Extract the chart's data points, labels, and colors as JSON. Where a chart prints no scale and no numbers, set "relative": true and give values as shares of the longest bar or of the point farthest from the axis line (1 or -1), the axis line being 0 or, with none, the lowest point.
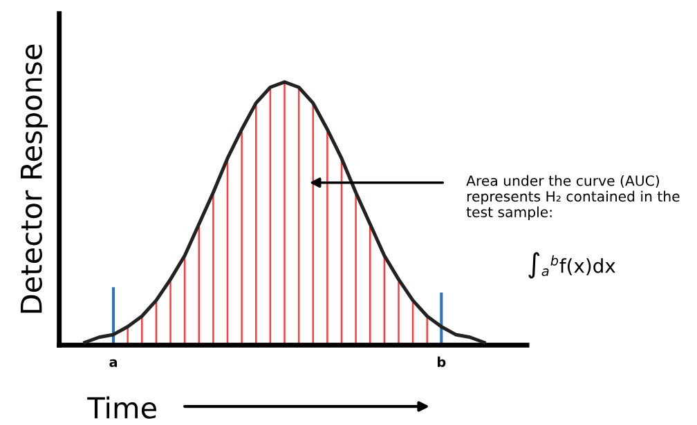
{
  "chart_data": {
    "type": "line",
    "relative": true,
    "xlabel": "Time",
    "ylabel": "Detector Response",
    "grid": false,
    "legend": false,
    "marker": "none",
    "categories": [
      null,
      null,
      "a",
      null,
      null,
      null,
      null,
      null,
      null,
      null,
      null,
      null,
      null,
      null,
      null,
      null,
      null,
      null,
      null,
      null,
      null,
      null,
      null,
      null,
      null,
      "b",
      null,
      null,
      null
    ],
    "series": [
      {
        "color": "#222222",
        "values": [
          0.01,
          0.03,
          0.04,
          0.07,
          0.11,
          0.17,
          0.25,
          0.34,
          0.46,
          0.58,
          0.71,
          0.82,
          0.92,
          0.98,
          1,
          0.98,
          0.92,
          0.82,
          0.71,
          0.58,
          0.46,
          0.34,
          0.25,
          0.17,
          0.11,
          0.07,
          0.04,
          0.03,
          0.01
        ]
      },
      {
        "type": "bar",
        "color": "#ff3b3b",
        "values": [
          null,
          null,
          null,
          0.07,
          0.11,
          0.17,
          0.25,
          0.34,
          0.46,
          0.58,
          0.71,
          0.82,
          0.92,
          0.98,
          1,
          0.98,
          0.92,
          0.82,
          0.71,
          0.58,
          0.46,
          0.34,
          0.25,
          0.17,
          0.11,
          null,
          null,
          null,
          null
        ]
      },
      {
        "type": "bar",
        "color": "#2e75b6",
        "values": [
          null,
          null,
          0.22,
          null,
          null,
          null,
          null,
          null,
          null,
          null,
          null,
          null,
          null,
          null,
          null,
          null,
          null,
          null,
          null,
          null,
          null,
          null,
          null,
          null,
          null,
          0.2,
          null,
          null,
          null
        ]
      }
    ],
    "annotations": [
      "Area under the curve (AUC)\nrepresents H₂ contained in the\ntest sample:",
      "∫$_{a}$$^{b}$f(x)dx"
    ]
  }
}
